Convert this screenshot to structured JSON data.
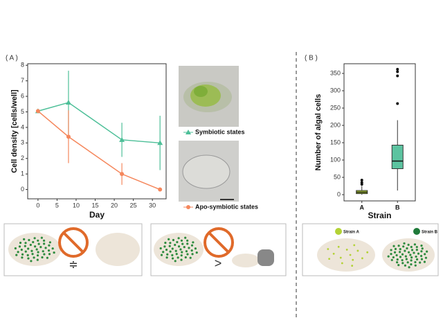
{
  "chart_data": [
    {
      "type": "line",
      "panel_label": "( A )",
      "x_label": "Day",
      "y_label": "Cell density [cells/well]",
      "x": [
        0,
        8,
        22,
        32
      ],
      "series": [
        {
          "name": "Symbiotic states",
          "color": "#4dbf98",
          "marker": "triangle",
          "values": [
            5.05,
            5.6,
            3.2,
            3.0
          ],
          "errors": [
            0.1,
            2.05,
            1.1,
            1.75
          ]
        },
        {
          "name": "Apo-symbiotic states",
          "color": "#f5875c",
          "marker": "circle",
          "values": [
            5.05,
            3.4,
            1.0,
            0.0
          ],
          "errors": [
            0.1,
            1.7,
            0.7,
            0.0
          ]
        }
      ],
      "xlim": [
        -2.7,
        33.6
      ],
      "xticks": [
        0,
        5,
        10,
        15,
        20,
        25,
        30
      ],
      "ylim": [
        -0.6,
        8.1
      ],
      "yticks": [
        0,
        1,
        2,
        3,
        4,
        5,
        6,
        7,
        8
      ]
    },
    {
      "type": "box",
      "panel_label": "( B )",
      "x_label": "Strain",
      "y_label": "Number of algal cells",
      "categories": [
        "A",
        "B"
      ],
      "boxes": [
        {
          "color": "#b3d235",
          "min": 0,
          "q1": 3,
          "median": 7,
          "q3": 12,
          "max": 25,
          "outliers": [
            30,
            35,
            42
          ]
        },
        {
          "color": "#5cc3a0",
          "min": 12,
          "q1": 75,
          "median": 97,
          "q3": 143,
          "max": 215,
          "outliers": [
            263,
            343,
            355,
            362
          ]
        }
      ],
      "ylim": [
        -18,
        378
      ],
      "yticks": [
        0,
        50,
        100,
        150,
        200,
        250,
        300,
        350
      ]
    }
  ],
  "illustrations": {
    "strain_a": "Strain A",
    "strain_b": "Strain B"
  }
}
